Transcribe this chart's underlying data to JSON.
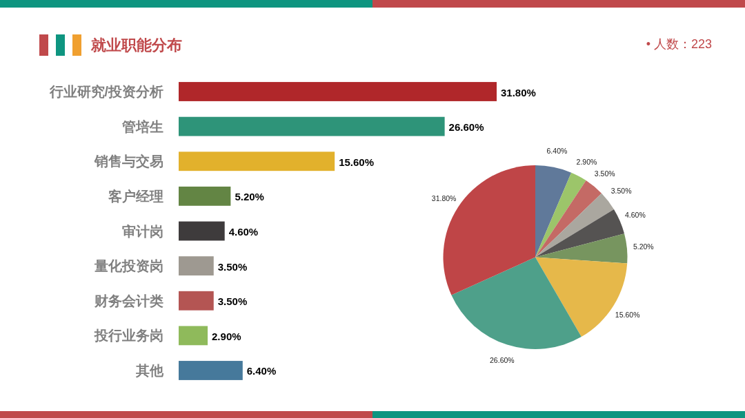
{
  "chart_data": [
    {
      "type": "bar",
      "orientation": "horizontal",
      "title": "就业职能分布",
      "annotations": [
        "• 人数：223"
      ],
      "categories": [
        "行业研究/投资分析",
        "管培生",
        "销售与交易",
        "客户经理",
        "审计岗",
        "量化投资岗",
        "财务会计类",
        "投行业务岗",
        "其他"
      ],
      "values": [
        31.8,
        26.6,
        15.6,
        5.2,
        4.6,
        3.5,
        3.5,
        2.9,
        6.4
      ],
      "colors": [
        "#b0272a",
        "#2e9479",
        "#e2b12c",
        "#638544",
        "#3e3b3c",
        "#9e9991",
        "#b45553",
        "#8fba5b",
        "#46799b"
      ],
      "value_labels": [
        "31.80%",
        "26.60%",
        "15.60%",
        "5.20%",
        "4.60%",
        "3.50%",
        "3.50%",
        "2.90%",
        "6.40%"
      ]
    },
    {
      "type": "pie",
      "categories": [
        null,
        null,
        null,
        null,
        null,
        null,
        null,
        null,
        null
      ],
      "values": [
        6.4,
        2.9,
        3.5,
        3.5,
        4.6,
        5.2,
        15.6,
        26.6,
        31.8
      ],
      "colors": [
        "#60799a",
        "#9cc56a",
        "#c46a65",
        "#aaa79f",
        "#555352",
        "#77955f",
        "#e6b84a",
        "#4ea08a",
        "#bf4547"
      ],
      "value_labels": [
        "6.40%",
        "2.90%",
        "3.50%",
        "3.50%",
        "4.60%",
        "5.20%",
        "15.60%",
        "26.60%",
        "31.80%"
      ]
    }
  ]
}
